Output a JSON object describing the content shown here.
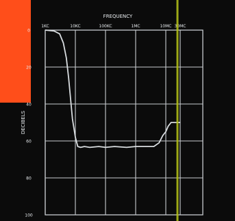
{
  "chart_data": {
    "type": "line",
    "title": "FREQUENCY",
    "ylabel": "DECIBELS",
    "x_scale": "log",
    "xlim_hz": [
      1000,
      30000000
    ],
    "ylim": [
      0,
      100
    ],
    "y_inverted": true,
    "grid": true,
    "x_ticks": [
      {
        "label": "1KC",
        "hz": 1000
      },
      {
        "label": "10KC",
        "hz": 10000
      },
      {
        "label": "100KC",
        "hz": 100000
      },
      {
        "label": "1MC",
        "hz": 1000000
      },
      {
        "label": "10MC",
        "hz": 10000000
      },
      {
        "label": "30MC",
        "hz": 30000000
      }
    ],
    "y_ticks": [
      0,
      20,
      40,
      60,
      80,
      100
    ],
    "series": [
      {
        "x_hz": [
          1000,
          2000,
          3000,
          4000,
          5000,
          6000,
          7000,
          8000,
          10000,
          12000,
          15000,
          20000,
          30000,
          60000,
          100000,
          200000,
          500000,
          1000000,
          2000000,
          4000000,
          6000000,
          8000000,
          10000000,
          12000000,
          15000000,
          20000000,
          30000000
        ],
        "y": [
          0,
          0.5,
          2,
          7,
          15,
          26,
          38,
          48,
          58,
          63,
          63.5,
          63,
          63.5,
          63,
          63.5,
          63,
          63.5,
          63,
          63,
          63,
          61,
          57,
          55,
          52,
          50,
          50,
          50
        ]
      }
    ],
    "colors": {
      "background": "#0b0b0b",
      "grid": "#c9cdd1",
      "curve": "#d9dde0",
      "accent_band": "#ff4e1a",
      "marker_line": "#b8c418"
    }
  }
}
